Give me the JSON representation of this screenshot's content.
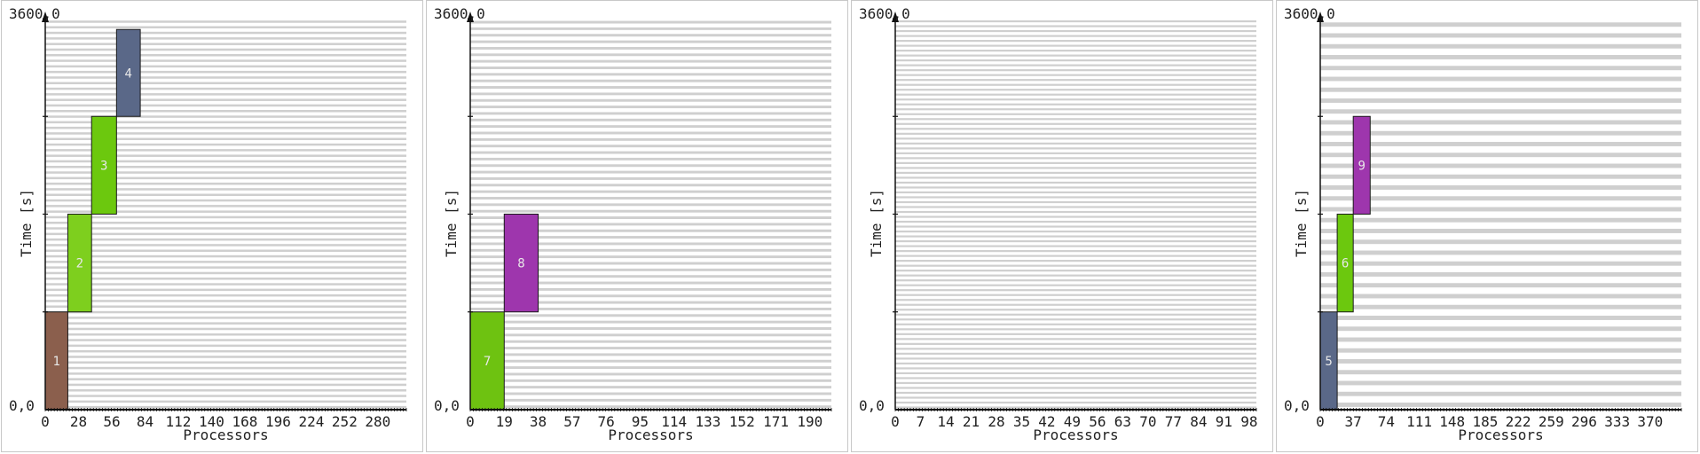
{
  "chart_data": [
    {
      "type": "gantt",
      "xlabel": "Processors",
      "ylabel": "Time [s]",
      "y_top_label": "3600,0",
      "origin_label": "0,0",
      "ylim": [
        0,
        3600
      ],
      "xmax": 304,
      "xticks": [
        0,
        28,
        56,
        84,
        112,
        140,
        168,
        196,
        224,
        252,
        280
      ],
      "tick_labels": [
        "0",
        "28",
        "56",
        "84",
        "112",
        "140",
        "168",
        "196",
        "224",
        "252",
        "280"
      ],
      "stripe_rows": 70,
      "jobs": [
        {
          "id": "1",
          "x0": 0,
          "x1": 19,
          "t0": 0,
          "t1": 900,
          "color": "#8b5f4d"
        },
        {
          "id": "2",
          "x0": 19,
          "x1": 39,
          "t0": 900,
          "t1": 1800,
          "color": "#7ecf1e"
        },
        {
          "id": "3",
          "x0": 39,
          "x1": 60,
          "t0": 1800,
          "t1": 2700,
          "color": "#6cc80e"
        },
        {
          "id": "4",
          "x0": 60,
          "x1": 80,
          "t0": 2700,
          "t1": 3500,
          "color": "#5a6888"
        }
      ]
    },
    {
      "type": "gantt",
      "xlabel": "Processors",
      "ylabel": "Time [s]",
      "y_top_label": "3600,0",
      "origin_label": "0,0",
      "ylim": [
        0,
        3600
      ],
      "xmax": 202,
      "xticks": [
        0,
        19,
        38,
        57,
        76,
        95,
        114,
        133,
        152,
        171,
        190
      ],
      "tick_labels": [
        "0",
        "19",
        "38",
        "57",
        "76",
        "95",
        "114",
        "133",
        "152",
        "171",
        "190"
      ],
      "stripe_rows": 60,
      "jobs": [
        {
          "id": "7",
          "x0": 0,
          "x1": 19,
          "t0": 0,
          "t1": 900,
          "color": "#6ec211"
        },
        {
          "id": "8",
          "x0": 19,
          "x1": 38,
          "t0": 900,
          "t1": 1800,
          "color": "#9e36ad"
        }
      ]
    },
    {
      "type": "gantt",
      "xlabel": "Processors",
      "ylabel": "Time [s]",
      "y_top_label": "3600,0",
      "origin_label": "0,0",
      "ylim": [
        0,
        3600
      ],
      "xmax": 100,
      "xticks": [
        0,
        7,
        14,
        21,
        28,
        35,
        42,
        49,
        56,
        63,
        70,
        77,
        84,
        91,
        98
      ],
      "tick_labels": [
        "0",
        "7",
        "14",
        "21",
        "28",
        "35",
        "42",
        "49",
        "56",
        "63",
        "70",
        "77",
        "84",
        "91",
        "98"
      ],
      "stripe_rows": 80,
      "jobs": []
    },
    {
      "type": "gantt",
      "xlabel": "Processors",
      "ylabel": "Time [s]",
      "y_top_label": "3600,0",
      "origin_label": "0,0",
      "ylim": [
        0,
        3600
      ],
      "xmax": 405,
      "xticks": [
        0,
        37,
        74,
        111,
        148,
        185,
        222,
        259,
        296,
        333,
        370
      ],
      "tick_labels": [
        "0",
        "37",
        "74",
        "111",
        "148",
        "185",
        "222",
        "259",
        "296",
        "333",
        "370"
      ],
      "stripe_rows": 36,
      "jobs": [
        {
          "id": "5",
          "x0": 0,
          "x1": 19,
          "t0": 0,
          "t1": 900,
          "color": "#5a6888"
        },
        {
          "id": "6",
          "x0": 19,
          "x1": 37,
          "t0": 900,
          "t1": 1800,
          "color": "#6cc80e"
        },
        {
          "id": "9",
          "x0": 37,
          "x1": 56,
          "t0": 1800,
          "t1": 2700,
          "color": "#9e36ad"
        }
      ]
    }
  ]
}
